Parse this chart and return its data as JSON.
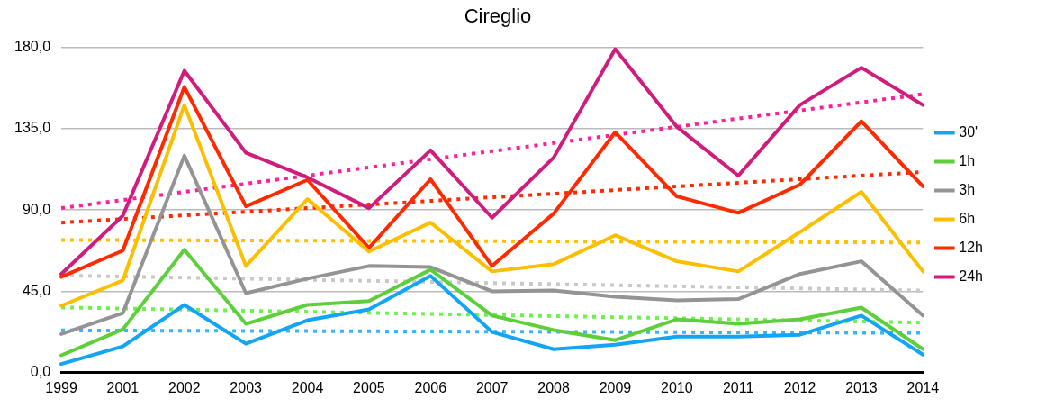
{
  "chart_data": {
    "type": "line",
    "title": "Cireglio",
    "categories": [
      "1999",
      "2001",
      "2002",
      "2003",
      "2004",
      "2005",
      "2006",
      "2007",
      "2008",
      "2009",
      "2010",
      "2011",
      "2012",
      "2013",
      "2014"
    ],
    "ylim": [
      0,
      180
    ],
    "yticks": [
      {
        "value": 0,
        "label": "0,0"
      },
      {
        "value": 45,
        "label": "45,0"
      },
      {
        "value": 90,
        "label": "90,0"
      },
      {
        "value": 135,
        "label": "135,0"
      },
      {
        "value": 180,
        "label": "180,0"
      }
    ],
    "grid": "y",
    "legend": "right",
    "marker": "none",
    "line_style": "solid",
    "series": [
      {
        "name": "30'",
        "color": "#12a5f5",
        "values": [
          4.8,
          14.5,
          37.5,
          16,
          29,
          35,
          53.6,
          22.5,
          13,
          15.5,
          20,
          20,
          21,
          31.6,
          10
        ]
      },
      {
        "name": "1h",
        "color": "#5ccf3a",
        "values": [
          9.6,
          24,
          68,
          27,
          37.5,
          39.6,
          57,
          31.6,
          23.6,
          18,
          29.5,
          27,
          29.5,
          36,
          13
        ]
      },
      {
        "name": "3h",
        "color": "#949494",
        "values": [
          21.4,
          33,
          120,
          44,
          52,
          59,
          58.4,
          45,
          45.5,
          42,
          40,
          40.7,
          54.6,
          61.6,
          31.6
        ]
      },
      {
        "name": "6h",
        "color": "#fbbf00",
        "values": [
          37,
          51,
          148,
          59,
          96,
          67,
          83,
          56,
          60,
          76,
          61.6,
          56,
          77.7,
          100,
          56
        ]
      },
      {
        "name": "12h",
        "color": "#ff2a00",
        "values": [
          53,
          67.5,
          158,
          92,
          106.6,
          69,
          107,
          59,
          88,
          133,
          97.5,
          88.4,
          104,
          139,
          103
        ]
      },
      {
        "name": "24h",
        "color": "#d01c7c",
        "values": [
          54.6,
          86.8,
          167,
          121.6,
          108,
          91,
          123,
          85.7,
          119,
          179,
          136,
          109,
          148,
          168.7,
          148
        ]
      },
      {
        "type": "line",
        "line_style": "dotted",
        "color": "#3ab4ff",
        "values": [
          23.4,
          23.3,
          23.2,
          23.1,
          23,
          22.9,
          22.8,
          22.7,
          22.6,
          22.5,
          22.4,
          22.3,
          22.2,
          22.1,
          22
        ]
      },
      {
        "type": "line",
        "line_style": "dotted",
        "color": "#6cf24a",
        "values": [
          36.1,
          35.5,
          34.9,
          34.3,
          33.7,
          33.1,
          32.5,
          31.9,
          31.3,
          30.7,
          30.1,
          29.5,
          28.9,
          28.3,
          27.7
        ]
      },
      {
        "type": "line",
        "line_style": "dotted",
        "color": "#c8c8c8",
        "values": [
          53.8,
          53.2,
          52.6,
          52,
          51.4,
          50.8,
          50.2,
          49.6,
          49,
          48.4,
          47.8,
          47.2,
          46.6,
          46,
          45.4
        ]
      },
      {
        "type": "line",
        "line_style": "dotted",
        "color": "#ffc000",
        "values": [
          73.4,
          73.3,
          73.2,
          73.1,
          73,
          72.9,
          72.8,
          72.7,
          72.6,
          72.5,
          72.4,
          72.3,
          72.2,
          72.1,
          72
        ]
      },
      {
        "type": "line",
        "line_style": "dotted",
        "color": "#ff2a00",
        "values": [
          83,
          85,
          87,
          89,
          91,
          93,
          95,
          97,
          99,
          101,
          103,
          105,
          107,
          109,
          111
        ]
      },
      {
        "type": "line",
        "line_style": "dotted",
        "color": "#ff1f9a",
        "values": [
          91,
          95.5,
          100,
          104.5,
          109,
          113.5,
          118,
          122.5,
          127,
          131.5,
          136,
          140.5,
          145,
          149.5,
          154
        ]
      }
    ]
  }
}
